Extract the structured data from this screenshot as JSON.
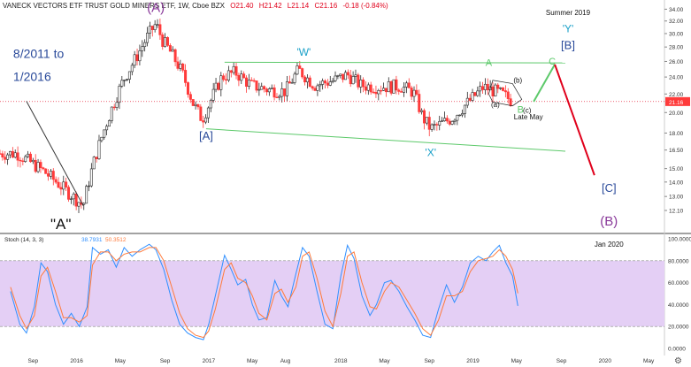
{
  "header": {
    "symbol_title": "VANECK VECTORS ETF TRUST GOLD MINERS ETF, 1W, Cboe BZX",
    "open": "O21.40",
    "high": "H21.42",
    "low": "L21.14",
    "close": "C21.16",
    "change": "-0.18 (-0.84%)"
  },
  "colors": {
    "candle_up": "#2a2a2a",
    "candle_down": "#ff3b3b",
    "green_line": "#5cc96a",
    "red_line": "#e0001b",
    "purple_text": "#8a3a9a",
    "blue_text": "#2a4a9a",
    "teal_text": "#1aa0c8",
    "stoch_k": "#2f8fff",
    "stoch_d": "#ff7a3a",
    "stoch_band": "#e4cff5",
    "price_tag": "#ff3b3b"
  },
  "chart_data": [
    {
      "type": "candlestick",
      "title": "VANECK VECTORS ETF TRUST GOLD MINERS ETF, 1W, Cboe BZX",
      "x_tick_labels": [
        "Sep",
        "2016",
        "May",
        "Sep",
        "2017",
        "May",
        "Aug",
        "2018",
        "May",
        "Sep",
        "2019",
        "May",
        "Sep",
        "2020",
        "May"
      ],
      "y_tick_labels": [
        "34.00",
        "32.00",
        "30.00",
        "28.00",
        "26.00",
        "24.00",
        "22.00",
        "20.00",
        "18.00",
        "16.50",
        "15.00",
        "14.00",
        "13.00",
        "12.10"
      ],
      "y_ticks": [
        34,
        32,
        30,
        28,
        26,
        24,
        22,
        20,
        18,
        16.5,
        15,
        14,
        13,
        12.1
      ],
      "ylim": [
        10.8,
        35.0
      ],
      "log_scale": true,
      "last_price": "21.16",
      "close_key_points": [
        [
          2015.55,
          16.2
        ],
        [
          2015.75,
          14.8
        ],
        [
          2015.92,
          13.4
        ],
        [
          2016.05,
          12.4
        ],
        [
          2016.13,
          15.5
        ],
        [
          2016.25,
          19.8
        ],
        [
          2016.35,
          23.5
        ],
        [
          2016.45,
          26.5
        ],
        [
          2016.55,
          30.0
        ],
        [
          2016.6,
          31.5
        ],
        [
          2016.65,
          29.0
        ],
        [
          2016.72,
          27.0
        ],
        [
          2016.8,
          24.5
        ],
        [
          2016.88,
          21.0
        ],
        [
          2016.95,
          19.3
        ],
        [
          2017.0,
          20.8
        ],
        [
          2017.1,
          24.0
        ],
        [
          2017.2,
          24.6
        ],
        [
          2017.32,
          23.0
        ],
        [
          2017.45,
          22.5
        ],
        [
          2017.58,
          22.3
        ],
        [
          2017.68,
          24.9
        ],
        [
          2017.8,
          23.0
        ],
        [
          2017.95,
          23.6
        ],
        [
          2018.05,
          24.3
        ],
        [
          2018.15,
          23.0
        ],
        [
          2018.28,
          22.8
        ],
        [
          2018.45,
          22.9
        ],
        [
          2018.55,
          22.2
        ],
        [
          2018.62,
          19.5
        ],
        [
          2018.68,
          18.4
        ],
        [
          2018.75,
          18.8
        ],
        [
          2018.85,
          19.5
        ],
        [
          2018.95,
          20.9
        ],
        [
          2019.0,
          21.6
        ],
        [
          2019.08,
          22.8
        ],
        [
          2019.15,
          22.4
        ],
        [
          2019.22,
          22.0
        ],
        [
          2019.3,
          21.16
        ]
      ],
      "annotations": [
        {
          "text": "(A)",
          "x": 2016.6,
          "y": 33.5,
          "color": "purple"
        },
        {
          "text": "'W'",
          "x": 2017.72,
          "y": 26.8,
          "color": "teal"
        },
        {
          "text": "[A]",
          "x": 2016.98,
          "y": 17.4,
          "color": "blue"
        },
        {
          "text": "'X'",
          "x": 2018.68,
          "y": 16.0,
          "color": "teal"
        },
        {
          "text": "A",
          "x": 2019.12,
          "y": 25.4,
          "color": "green"
        },
        {
          "text": "(b)",
          "x": 2019.34,
          "y": 23.3,
          "color": "black"
        },
        {
          "text": "(a)",
          "x": 2019.17,
          "y": 20.6,
          "color": "black"
        },
        {
          "text": "B",
          "x": 2019.36,
          "y": 20.0,
          "color": "green"
        },
        {
          "text": "(c)",
          "x": 2019.41,
          "y": 20.0,
          "color": "black"
        },
        {
          "text": "Late May",
          "x": 2019.42,
          "y": 19.3,
          "color": "black"
        },
        {
          "text": "C",
          "x": 2019.6,
          "y": 25.6,
          "color": "green"
        },
        {
          "text": "Summer 2019",
          "x": 2019.72,
          "y": 33.0,
          "color": "black"
        },
        {
          "text": "'Y'",
          "x": 2019.72,
          "y": 30.2,
          "color": "teal"
        },
        {
          "text": "[B]",
          "x": 2019.72,
          "y": 27.7,
          "color": "blue"
        },
        {
          "text": "[C]",
          "x": 2020.03,
          "y": 13.3,
          "color": "blue"
        },
        {
          "text": "(B)",
          "x": 2020.03,
          "y": 11.2,
          "color": "purple"
        },
        {
          "text": "8/2011 to",
          "x": 2015.52,
          "y": 26.5,
          "color": "blue"
        },
        {
          "text": "1/2016",
          "x": 2015.52,
          "y": 23.5,
          "color": "blue"
        },
        {
          "text": "\"A\"",
          "x": 2015.88,
          "y": 11.0,
          "color": "black"
        }
      ],
      "trend_lines": [
        {
          "name": "upper channel",
          "points": [
            [
              2017.12,
              25.9
            ],
            [
              2019.7,
              25.8
            ]
          ],
          "color": "green"
        },
        {
          "name": "lower channel",
          "points": [
            [
              2016.98,
              18.4
            ],
            [
              2019.7,
              16.4
            ]
          ],
          "color": "green"
        },
        {
          "name": "projection up",
          "points": [
            [
              2019.46,
              21.16
            ],
            [
              2019.62,
              25.6
            ]
          ],
          "color": "green"
        },
        {
          "name": "projection down",
          "points": [
            [
              2019.62,
              25.6
            ],
            [
              2019.92,
              14.5
            ]
          ],
          "color": "red"
        },
        {
          "name": "pointer",
          "points": [
            [
              2015.62,
              21.2
            ],
            [
              2016.05,
              12.4
            ]
          ],
          "color": "black"
        }
      ]
    },
    {
      "type": "line",
      "title": "Stoch (14, 3, 3)",
      "legend_values": [
        "38.7931",
        "50.3512"
      ],
      "ylim": [
        0,
        100
      ],
      "y_tick_labels": [
        "100.0000",
        "80.0000",
        "60.0000",
        "40.0000",
        "20.0000",
        "0.0000"
      ],
      "overbought": 80,
      "oversold": 20,
      "series": [
        {
          "color": "blue",
          "points": [
            [
              2015.5,
              52
            ],
            [
              2015.57,
              22
            ],
            [
              2015.62,
              14
            ],
            [
              2015.68,
              38
            ],
            [
              2015.73,
              78
            ],
            [
              2015.78,
              70
            ],
            [
              2015.84,
              40
            ],
            [
              2015.9,
              22
            ],
            [
              2015.96,
              32
            ],
            [
              2016.02,
              20
            ],
            [
              2016.08,
              38
            ],
            [
              2016.12,
              92
            ],
            [
              2016.18,
              86
            ],
            [
              2016.24,
              90
            ],
            [
              2016.3,
              74
            ],
            [
              2016.36,
              92
            ],
            [
              2016.42,
              84
            ],
            [
              2016.48,
              90
            ],
            [
              2016.55,
              95
            ],
            [
              2016.6,
              90
            ],
            [
              2016.66,
              72
            ],
            [
              2016.72,
              44
            ],
            [
              2016.78,
              22
            ],
            [
              2016.84,
              14
            ],
            [
              2016.9,
              10
            ],
            [
              2016.96,
              8
            ],
            [
              2017.0,
              22
            ],
            [
              2017.05,
              48
            ],
            [
              2017.12,
              85
            ],
            [
              2017.17,
              72
            ],
            [
              2017.22,
              58
            ],
            [
              2017.28,
              63
            ],
            [
              2017.33,
              40
            ],
            [
              2017.38,
              26
            ],
            [
              2017.44,
              28
            ],
            [
              2017.5,
              62
            ],
            [
              2017.55,
              48
            ],
            [
              2017.6,
              38
            ],
            [
              2017.66,
              68
            ],
            [
              2017.71,
              92
            ],
            [
              2017.76,
              84
            ],
            [
              2017.82,
              52
            ],
            [
              2017.88,
              22
            ],
            [
              2017.94,
              18
            ],
            [
              2018.0,
              66
            ],
            [
              2018.05,
              94
            ],
            [
              2018.1,
              82
            ],
            [
              2018.16,
              48
            ],
            [
              2018.22,
              30
            ],
            [
              2018.27,
              40
            ],
            [
              2018.33,
              60
            ],
            [
              2018.38,
              62
            ],
            [
              2018.44,
              52
            ],
            [
              2018.5,
              38
            ],
            [
              2018.56,
              26
            ],
            [
              2018.62,
              12
            ],
            [
              2018.68,
              10
            ],
            [
              2018.74,
              36
            ],
            [
              2018.8,
              58
            ],
            [
              2018.86,
              42
            ],
            [
              2018.92,
              56
            ],
            [
              2018.98,
              78
            ],
            [
              2019.04,
              84
            ],
            [
              2019.1,
              80
            ],
            [
              2019.15,
              88
            ],
            [
              2019.2,
              94
            ],
            [
              2019.25,
              78
            ],
            [
              2019.3,
              66
            ],
            [
              2019.34,
              38.79
            ]
          ]
        },
        {
          "color": "orange",
          "points": [
            [
              2015.5,
              56
            ],
            [
              2015.57,
              30
            ],
            [
              2015.62,
              18
            ],
            [
              2015.68,
              30
            ],
            [
              2015.73,
              66
            ],
            [
              2015.78,
              74
            ],
            [
              2015.84,
              52
            ],
            [
              2015.9,
              28
            ],
            [
              2015.96,
              28
            ],
            [
              2016.02,
              24
            ],
            [
              2016.08,
              30
            ],
            [
              2016.12,
              76
            ],
            [
              2016.18,
              88
            ],
            [
              2016.24,
              88
            ],
            [
              2016.3,
              80
            ],
            [
              2016.36,
              86
            ],
            [
              2016.42,
              88
            ],
            [
              2016.48,
              88
            ],
            [
              2016.55,
              92
            ],
            [
              2016.6,
              92
            ],
            [
              2016.66,
              80
            ],
            [
              2016.72,
              56
            ],
            [
              2016.78,
              32
            ],
            [
              2016.84,
              18
            ],
            [
              2016.9,
              12
            ],
            [
              2016.96,
              10
            ],
            [
              2017.0,
              16
            ],
            [
              2017.05,
              36
            ],
            [
              2017.12,
              72
            ],
            [
              2017.17,
              78
            ],
            [
              2017.22,
              64
            ],
            [
              2017.28,
              60
            ],
            [
              2017.33,
              48
            ],
            [
              2017.38,
              32
            ],
            [
              2017.44,
              26
            ],
            [
              2017.5,
              50
            ],
            [
              2017.55,
              54
            ],
            [
              2017.6,
              42
            ],
            [
              2017.66,
              56
            ],
            [
              2017.71,
              84
            ],
            [
              2017.76,
              88
            ],
            [
              2017.82,
              64
            ],
            [
              2017.88,
              34
            ],
            [
              2017.94,
              20
            ],
            [
              2018.0,
              50
            ],
            [
              2018.05,
              84
            ],
            [
              2018.1,
              88
            ],
            [
              2018.16,
              60
            ],
            [
              2018.22,
              38
            ],
            [
              2018.27,
              36
            ],
            [
              2018.33,
              52
            ],
            [
              2018.38,
              60
            ],
            [
              2018.44,
              56
            ],
            [
              2018.5,
              44
            ],
            [
              2018.56,
              32
            ],
            [
              2018.62,
              18
            ],
            [
              2018.68,
              12
            ],
            [
              2018.74,
              26
            ],
            [
              2018.8,
              48
            ],
            [
              2018.86,
              48
            ],
            [
              2018.92,
              52
            ],
            [
              2018.98,
              70
            ],
            [
              2019.04,
              80
            ],
            [
              2019.1,
              82
            ],
            [
              2019.15,
              84
            ],
            [
              2019.2,
              90
            ],
            [
              2019.25,
              84
            ],
            [
              2019.3,
              72
            ],
            [
              2019.34,
              50.35
            ]
          ]
        }
      ]
    }
  ],
  "footer": {
    "date_label": "Jan 2020"
  }
}
